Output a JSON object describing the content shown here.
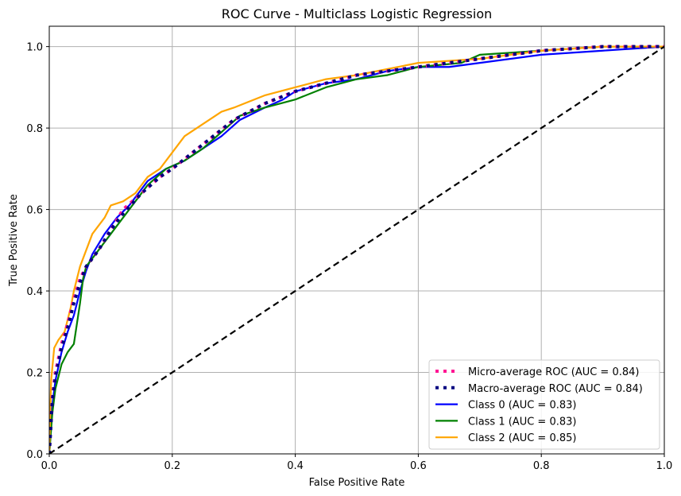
{
  "chart_data": {
    "type": "line",
    "title": "ROC Curve - Multiclass Logistic Regression",
    "xlabel": "False Positive Rate",
    "ylabel": "True Positive Rate",
    "xlim": [
      0.0,
      1.0
    ],
    "ylim": [
      0.0,
      1.05
    ],
    "xticks": [
      "0.0",
      "0.2",
      "0.4",
      "0.6",
      "0.8",
      "1.0"
    ],
    "yticks": [
      "0.0",
      "0.2",
      "0.4",
      "0.6",
      "0.8",
      "1.0"
    ],
    "grid": true,
    "legend_position": "lower-right",
    "series": [
      {
        "name": "Micro-average ROC (AUC = 0.84)",
        "color": "#ff1493",
        "style": "dotted",
        "x": [
          0.0,
          0.005,
          0.01,
          0.02,
          0.03,
          0.04,
          0.05,
          0.06,
          0.08,
          0.1,
          0.12,
          0.15,
          0.18,
          0.2,
          0.25,
          0.3,
          0.35,
          0.4,
          0.45,
          0.5,
          0.6,
          0.7,
          0.8,
          0.9,
          1.0
        ],
        "y": [
          0.0,
          0.14,
          0.2,
          0.27,
          0.32,
          0.38,
          0.43,
          0.46,
          0.5,
          0.55,
          0.6,
          0.64,
          0.68,
          0.7,
          0.76,
          0.82,
          0.86,
          0.89,
          0.91,
          0.93,
          0.95,
          0.97,
          0.99,
          1.0,
          1.0
        ]
      },
      {
        "name": "Macro-average ROC (AUC = 0.84)",
        "color": "#000080",
        "style": "dotted",
        "x": [
          0.0,
          0.005,
          0.01,
          0.02,
          0.03,
          0.04,
          0.05,
          0.06,
          0.08,
          0.1,
          0.12,
          0.15,
          0.18,
          0.2,
          0.25,
          0.3,
          0.35,
          0.4,
          0.45,
          0.5,
          0.6,
          0.7,
          0.8,
          0.9,
          1.0
        ],
        "y": [
          0.0,
          0.13,
          0.19,
          0.26,
          0.31,
          0.37,
          0.42,
          0.46,
          0.5,
          0.55,
          0.59,
          0.64,
          0.68,
          0.7,
          0.76,
          0.82,
          0.86,
          0.89,
          0.91,
          0.93,
          0.95,
          0.97,
          0.99,
          1.0,
          1.0
        ]
      },
      {
        "name": "Class 0 (AUC = 0.83)",
        "color": "#0000ff",
        "style": "solid",
        "x": [
          0.0,
          0.005,
          0.01,
          0.02,
          0.03,
          0.04,
          0.05,
          0.06,
          0.07,
          0.09,
          0.11,
          0.13,
          0.16,
          0.19,
          0.22,
          0.25,
          0.28,
          0.31,
          0.35,
          0.38,
          0.4,
          0.45,
          0.5,
          0.55,
          0.6,
          0.65,
          0.7,
          0.8,
          0.9,
          1.0
        ],
        "y": [
          0.0,
          0.12,
          0.18,
          0.25,
          0.3,
          0.34,
          0.4,
          0.45,
          0.49,
          0.54,
          0.58,
          0.61,
          0.67,
          0.7,
          0.72,
          0.75,
          0.78,
          0.82,
          0.85,
          0.87,
          0.89,
          0.91,
          0.92,
          0.94,
          0.95,
          0.95,
          0.96,
          0.98,
          0.99,
          1.0
        ]
      },
      {
        "name": "Class 1 (AUC = 0.83)",
        "color": "#008000",
        "style": "solid",
        "x": [
          0.0,
          0.005,
          0.01,
          0.02,
          0.03,
          0.04,
          0.05,
          0.055,
          0.06,
          0.08,
          0.1,
          0.12,
          0.14,
          0.16,
          0.19,
          0.22,
          0.25,
          0.28,
          0.31,
          0.35,
          0.4,
          0.45,
          0.5,
          0.55,
          0.6,
          0.67,
          0.7,
          0.8,
          0.9,
          1.0
        ],
        "y": [
          0.0,
          0.1,
          0.16,
          0.22,
          0.25,
          0.27,
          0.37,
          0.43,
          0.46,
          0.5,
          0.54,
          0.58,
          0.62,
          0.66,
          0.7,
          0.72,
          0.75,
          0.79,
          0.83,
          0.85,
          0.87,
          0.9,
          0.92,
          0.93,
          0.95,
          0.96,
          0.98,
          0.99,
          1.0,
          1.0
        ]
      },
      {
        "name": "Class 2 (AUC = 0.85)",
        "color": "#ffa500",
        "style": "solid",
        "x": [
          0.0,
          0.003,
          0.008,
          0.015,
          0.025,
          0.035,
          0.04,
          0.05,
          0.06,
          0.07,
          0.08,
          0.09,
          0.1,
          0.12,
          0.14,
          0.16,
          0.18,
          0.2,
          0.22,
          0.25,
          0.28,
          0.3,
          0.35,
          0.4,
          0.45,
          0.5,
          0.6,
          0.7,
          0.8,
          0.9,
          1.0
        ],
        "y": [
          0.0,
          0.18,
          0.26,
          0.28,
          0.3,
          0.36,
          0.4,
          0.46,
          0.5,
          0.54,
          0.56,
          0.58,
          0.61,
          0.62,
          0.64,
          0.68,
          0.7,
          0.74,
          0.78,
          0.81,
          0.84,
          0.85,
          0.88,
          0.9,
          0.92,
          0.93,
          0.96,
          0.97,
          0.99,
          1.0,
          1.0
        ]
      }
    ],
    "reference_line": {
      "x": [
        0.0,
        1.0
      ],
      "y": [
        0.0,
        1.0
      ],
      "color": "#000000",
      "style": "dashed"
    }
  }
}
